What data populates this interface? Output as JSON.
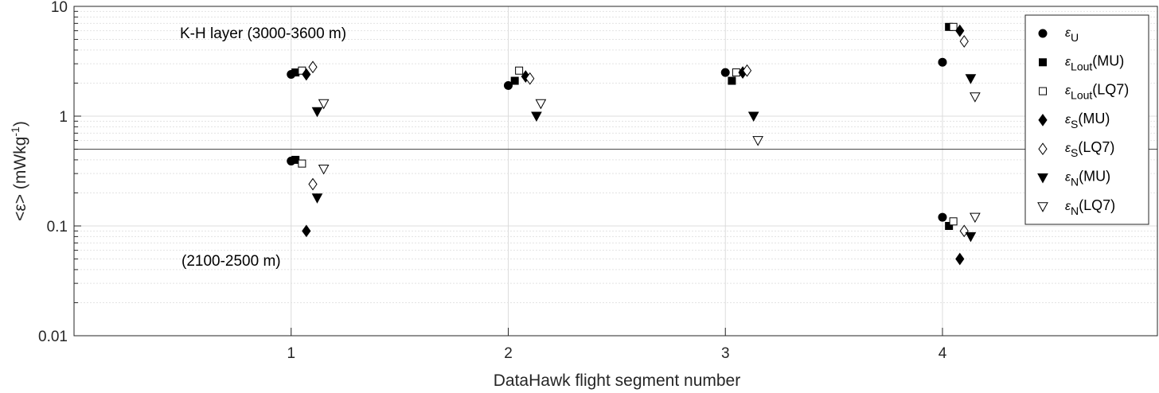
{
  "chart_data": {
    "type": "scatter",
    "xlabel": "DataHawk flight segment number",
    "ylabel": "<ε> (mWkg⁻¹)",
    "xlim": [
      0,
      4.99
    ],
    "ylim": [
      0.01,
      10
    ],
    "y_scale": "log",
    "x_ticks": [
      1,
      2,
      3,
      4
    ],
    "y_ticks": [
      0.01,
      0.1,
      1,
      10
    ],
    "y_tick_labels": [
      "0.01",
      "0.1",
      "1",
      "10"
    ],
    "grid": true,
    "legend_position": "top-right",
    "reference_line_y": 0.5,
    "annotations": [
      {
        "text": "K-H layer (3000-3600 m)"
      },
      {
        "text": "(2100-2500 m)"
      }
    ],
    "series": [
      {
        "name": "εU",
        "label_base": "ε",
        "label_sub": "U",
        "label_suffix": "",
        "marker": "circle",
        "filled": true,
        "x": [
          1.0,
          1.0,
          2.0,
          3.0,
          4.0,
          4.0
        ],
        "y": [
          2.4,
          0.39,
          1.9,
          2.5,
          3.1,
          0.12
        ]
      },
      {
        "name": "εLout(MU)",
        "label_base": "ε",
        "label_sub": "Lout",
        "label_suffix": "(MU)",
        "marker": "square",
        "filled": true,
        "x": [
          1.02,
          1.02,
          2.03,
          3.03,
          4.03,
          4.03
        ],
        "y": [
          2.5,
          0.4,
          2.1,
          2.1,
          6.5,
          0.1
        ]
      },
      {
        "name": "εLout(LQ7)",
        "label_base": "ε",
        "label_sub": "Lout",
        "label_suffix": "(LQ7)",
        "marker": "square",
        "filled": false,
        "x": [
          1.05,
          1.05,
          2.05,
          3.05,
          4.05,
          4.05
        ],
        "y": [
          2.6,
          0.37,
          2.6,
          2.5,
          6.5,
          0.11
        ]
      },
      {
        "name": "εS(MU)",
        "label_base": "ε",
        "label_sub": "S",
        "label_suffix": "(MU)",
        "marker": "diamond",
        "filled": true,
        "x": [
          1.07,
          1.07,
          2.08,
          3.08,
          4.08,
          4.08
        ],
        "y": [
          2.4,
          0.09,
          2.3,
          2.5,
          6.0,
          0.05
        ]
      },
      {
        "name": "εS(LQ7)",
        "label_base": "ε",
        "label_sub": "S",
        "label_suffix": "(LQ7)",
        "marker": "diamond",
        "filled": false,
        "x": [
          1.1,
          1.1,
          2.1,
          3.1,
          4.1,
          4.1
        ],
        "y": [
          2.8,
          0.24,
          2.2,
          2.6,
          4.8,
          0.09
        ]
      },
      {
        "name": "εN(MU)",
        "label_base": "ε",
        "label_sub": "N",
        "label_suffix": "(MU)",
        "marker": "triangle-down",
        "filled": true,
        "x": [
          1.12,
          1.12,
          2.13,
          3.13,
          4.13,
          4.13
        ],
        "y": [
          1.1,
          0.18,
          1.0,
          1.0,
          2.2,
          0.08
        ]
      },
      {
        "name": "εN(LQ7)",
        "label_base": "ε",
        "label_sub": "N",
        "label_suffix": "(LQ7)",
        "marker": "triangle-down",
        "filled": false,
        "x": [
          1.15,
          1.15,
          2.15,
          3.15,
          4.15,
          4.15
        ],
        "y": [
          1.3,
          0.33,
          1.3,
          0.6,
          1.5,
          0.12
        ]
      }
    ]
  }
}
